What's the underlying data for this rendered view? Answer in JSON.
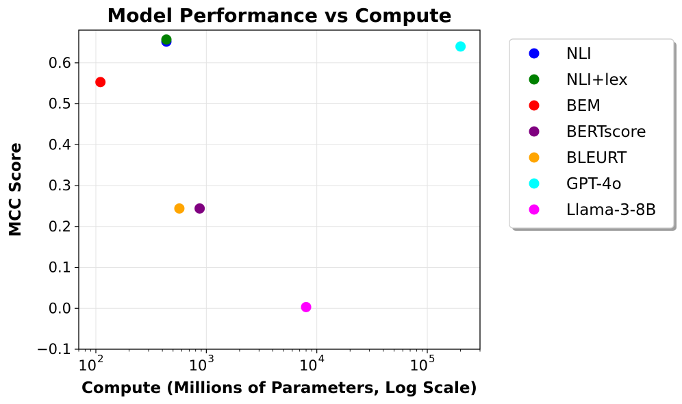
{
  "chart_data": {
    "type": "scatter",
    "title": "Model Performance vs Compute",
    "xlabel": "Compute (Millions of Parameters, Log Scale)",
    "ylabel": "MCC Score",
    "x_scale": "log",
    "xlim": [
      70,
      300000
    ],
    "ylim": [
      -0.1,
      0.68
    ],
    "x_ticks": [
      {
        "value": 100,
        "base": "10",
        "exp": "2"
      },
      {
        "value": 1000,
        "base": "10",
        "exp": "3"
      },
      {
        "value": 10000,
        "base": "10",
        "exp": "4"
      },
      {
        "value": 100000,
        "base": "10",
        "exp": "5"
      }
    ],
    "y_ticks": [
      {
        "value": -0.1,
        "label": "−0.1"
      },
      {
        "value": 0.0,
        "label": "0.0"
      },
      {
        "value": 0.1,
        "label": "0.1"
      },
      {
        "value": 0.2,
        "label": "0.2"
      },
      {
        "value": 0.3,
        "label": "0.3"
      },
      {
        "value": 0.4,
        "label": "0.4"
      },
      {
        "value": 0.5,
        "label": "0.5"
      },
      {
        "value": 0.6,
        "label": "0.6"
      }
    ],
    "grid": true,
    "legend_position": "outside-right",
    "series": [
      {
        "name": "NLI",
        "color": "#0000ff",
        "x": 435,
        "y": 0.652
      },
      {
        "name": "NLI+lex",
        "color": "#008000",
        "x": 435,
        "y": 0.657
      },
      {
        "name": "BEM",
        "color": "#ff0000",
        "x": 110,
        "y": 0.553
      },
      {
        "name": "BERTscore",
        "color": "#800080",
        "x": 870,
        "y": 0.244
      },
      {
        "name": "BLEURT",
        "color": "#ffa500",
        "x": 570,
        "y": 0.244
      },
      {
        "name": "GPT-4o",
        "color": "#00ffff",
        "x": 200000,
        "y": 0.64
      },
      {
        "name": "Llama-3-8B",
        "color": "#ff00ff",
        "x": 8000,
        "y": 0.003
      }
    ]
  }
}
